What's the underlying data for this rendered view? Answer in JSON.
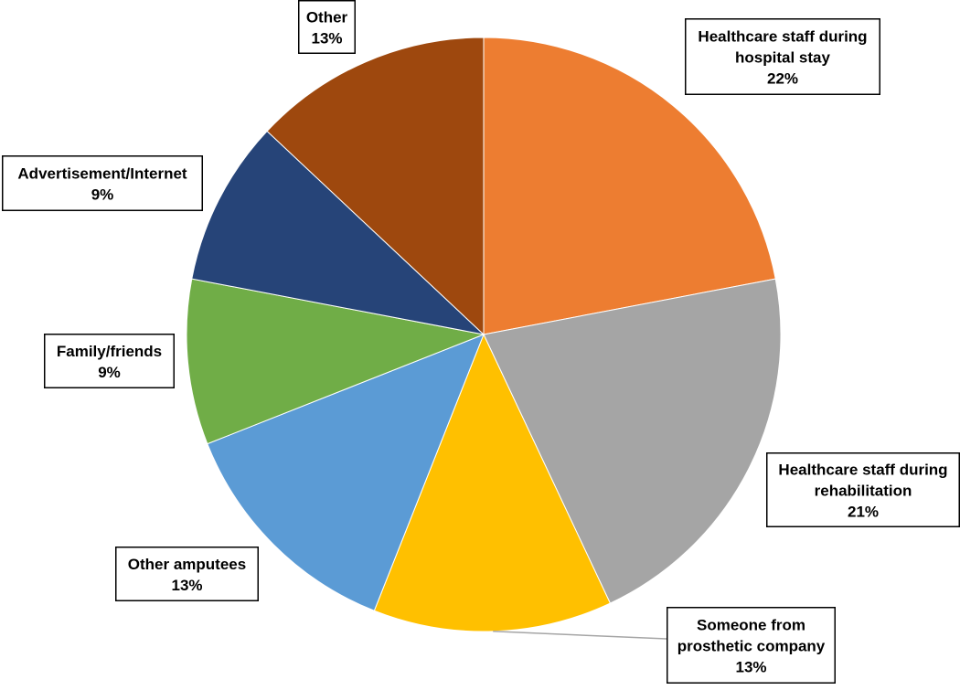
{
  "chart_data": {
    "type": "pie",
    "title": "",
    "start_angle_deg": 0,
    "direction": "clockwise",
    "slices": [
      {
        "label": "Healthcare staff during hospital stay",
        "label_lines": [
          "Healthcare staff during",
          "hospital stay"
        ],
        "value": 22,
        "display": "22%",
        "color": "#ED7D31"
      },
      {
        "label": "Healthcare staff during rehabilitation",
        "label_lines": [
          "Healthcare staff during",
          "rehabilitation"
        ],
        "value": 21,
        "display": "21%",
        "color": "#A5A5A5"
      },
      {
        "label": "Someone from prosthetic company",
        "label_lines": [
          "Someone from",
          "prosthetic company"
        ],
        "value": 13,
        "display": "13%",
        "color": "#FFC000"
      },
      {
        "label": "Other amputees",
        "label_lines": [
          "Other amputees"
        ],
        "value": 13,
        "display": "13%",
        "color": "#5B9BD5"
      },
      {
        "label": "Family/friends",
        "label_lines": [
          "Family/friends"
        ],
        "value": 9,
        "display": "9%",
        "color": "#70AD47"
      },
      {
        "label": "Advertisement/Internet",
        "label_lines": [
          "Advertisement/Internet"
        ],
        "value": 9,
        "display": "9%",
        "color": "#264478"
      },
      {
        "label": "Other",
        "label_lines": [
          "Other"
        ],
        "value": 13,
        "display": "13%",
        "color": "#9E480E"
      }
    ],
    "legend": "none",
    "data_labels": "callout boxes with category name and percent"
  }
}
